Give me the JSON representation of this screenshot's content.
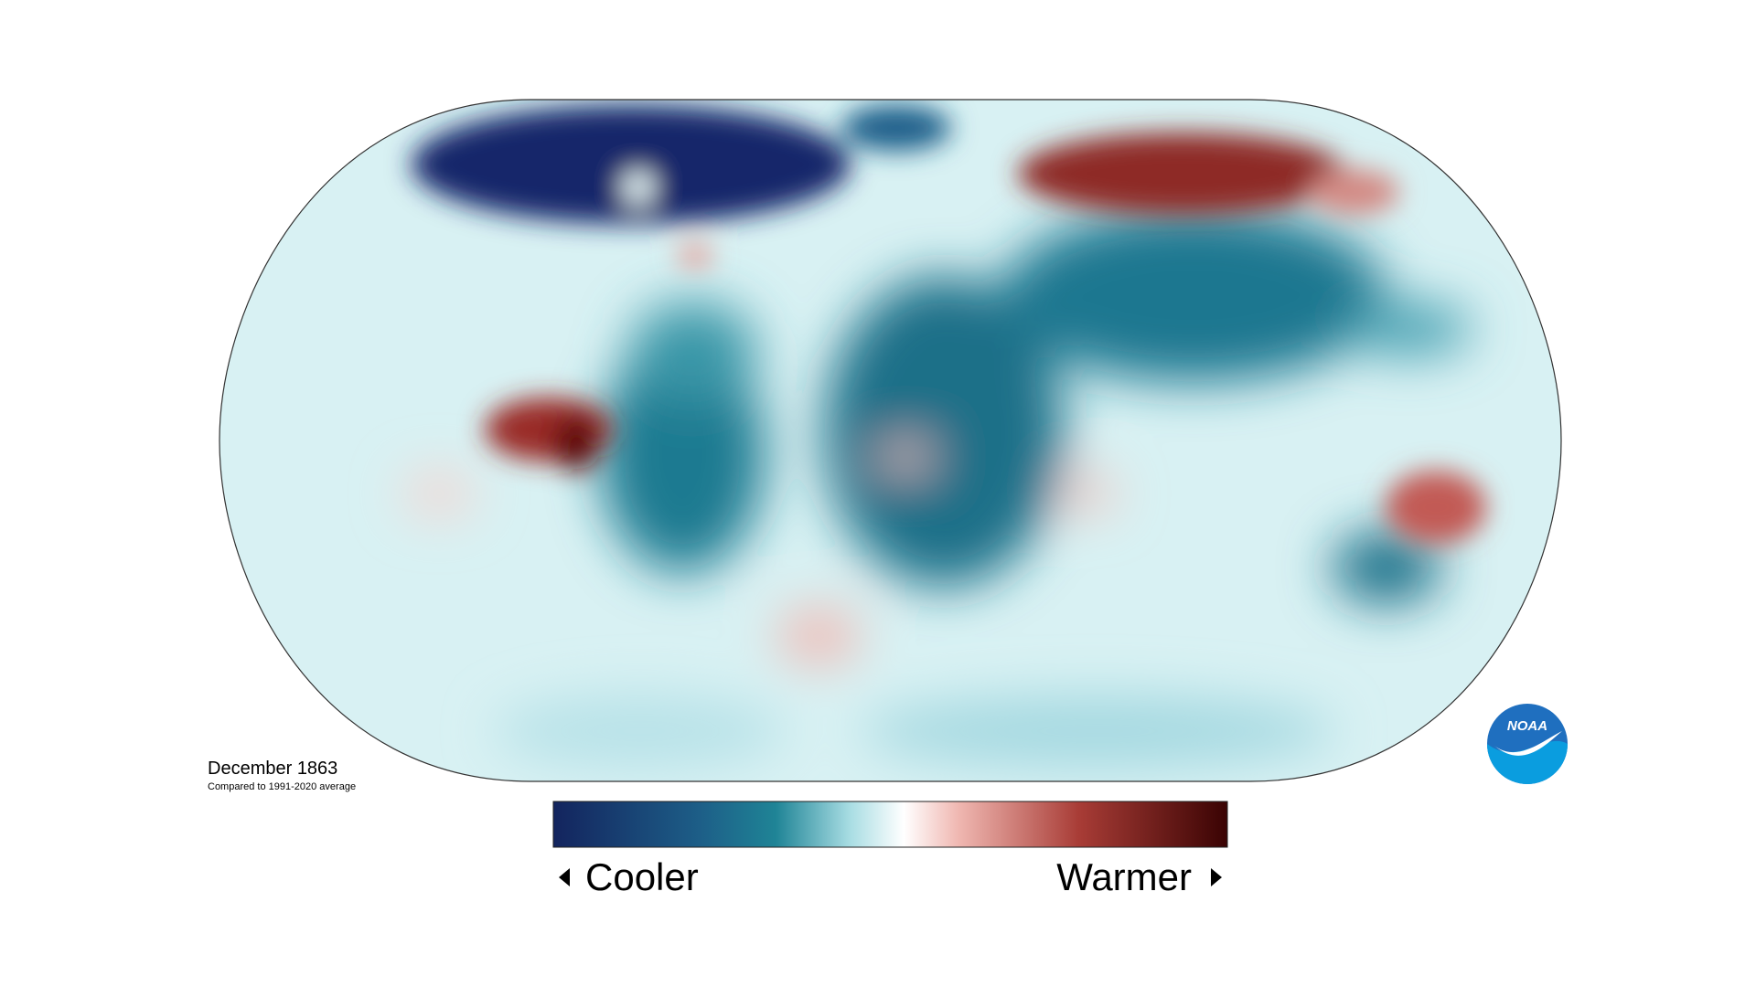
{
  "map": {
    "title": "December 1863",
    "subtitle": "Compared to 1991-2020 average"
  },
  "legend": {
    "low_label": "Cooler",
    "high_label": "Warmer"
  },
  "logo": {
    "text": "NOAA"
  }
}
